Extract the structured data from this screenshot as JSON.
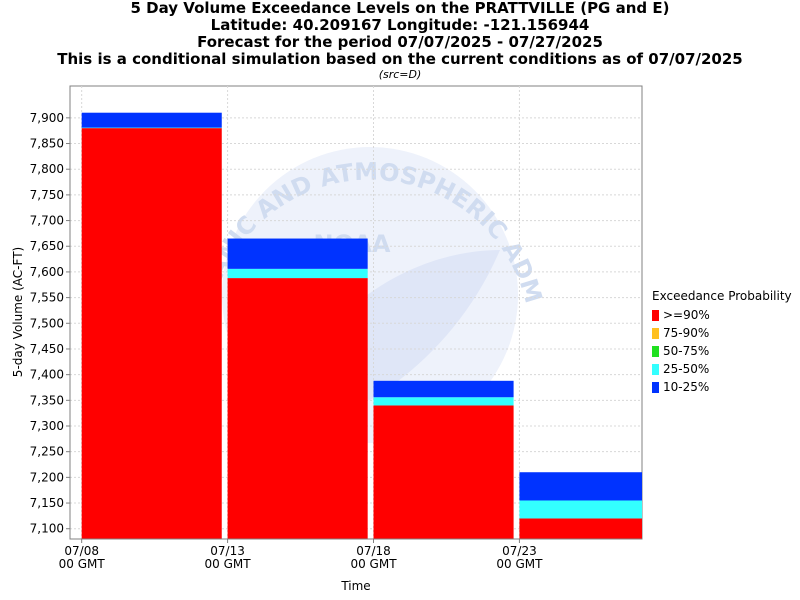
{
  "titles": {
    "line1": "5 Day Volume Exceedance Levels on the PRATTVILLE (PG and E)",
    "line2": "Latitude: 40.209167 Longitude: -121.156944",
    "line3": "Forecast for the period 07/07/2025 - 07/27/2025",
    "line4": "This is a conditional simulation based on the current conditions as of 07/07/2025",
    "src": "(src=D)"
  },
  "watermark": {
    "arc_text": "NATIONAL OCEANIC AND ATMOSPHERIC ADMINISTRATION",
    "center_text": "NOAA"
  },
  "legend": {
    "title": "Exceedance Probability",
    "items": [
      {
        "label": ">=90%",
        "color": "#ff0000"
      },
      {
        "label": "75-90%",
        "color": "#ffc020"
      },
      {
        "label": "50-75%",
        "color": "#20e020"
      },
      {
        "label": "25-50%",
        "color": "#33ffff"
      },
      {
        "label": "10-25%",
        "color": "#0033ff"
      }
    ]
  },
  "chart_data": {
    "type": "bar",
    "stacked": true,
    "xlabel": "Time",
    "ylabel": "5-day Volume (AC-FT)",
    "ylim": [
      7080,
      7962
    ],
    "yticks": [
      7100,
      7150,
      7200,
      7250,
      7300,
      7350,
      7400,
      7450,
      7500,
      7550,
      7600,
      7650,
      7700,
      7750,
      7800,
      7850,
      7900
    ],
    "ytick_labels": [
      "7,100",
      "7,150",
      "7,200",
      "7,250",
      "7,300",
      "7,350",
      "7,400",
      "7,450",
      "7,500",
      "7,550",
      "7,600",
      "7,650",
      "7,700",
      "7,750",
      "7,800",
      "7,850",
      "7,900"
    ],
    "xticks": [
      {
        "date": "07/08",
        "sub": "00 GMT",
        "day": 1
      },
      {
        "date": "07/13",
        "sub": "00 GMT",
        "day": 6
      },
      {
        "date": "07/18",
        "sub": "00 GMT",
        "day": 11
      },
      {
        "date": "07/23",
        "sub": "00 GMT",
        "day": 16
      }
    ],
    "xlim_days": [
      0.6,
      20.2
    ],
    "grid": true,
    "legend_position": "right",
    "bars": [
      {
        "start_day": 1,
        "end_day": 5.8,
        "levels": {
          ">=90%": 7880,
          "75-90%": 7880,
          "50-75%": 7880,
          "25-50%": 7881,
          "10-25%": 7910
        }
      },
      {
        "start_day": 6,
        "end_day": 10.8,
        "levels": {
          ">=90%": 7588,
          "75-90%": 7588,
          "50-75%": 7588,
          "25-50%": 7606,
          "10-25%": 7665
        }
      },
      {
        "start_day": 11,
        "end_day": 15.8,
        "levels": {
          ">=90%": 7340,
          "75-90%": 7340,
          "50-75%": 7340,
          "25-50%": 7356,
          "10-25%": 7388
        }
      },
      {
        "start_day": 16,
        "end_day": 20.8,
        "levels": {
          ">=90%": 7120,
          "75-90%": 7120,
          "50-75%": 7120,
          "25-50%": 7155,
          "10-25%": 7210
        }
      }
    ]
  }
}
